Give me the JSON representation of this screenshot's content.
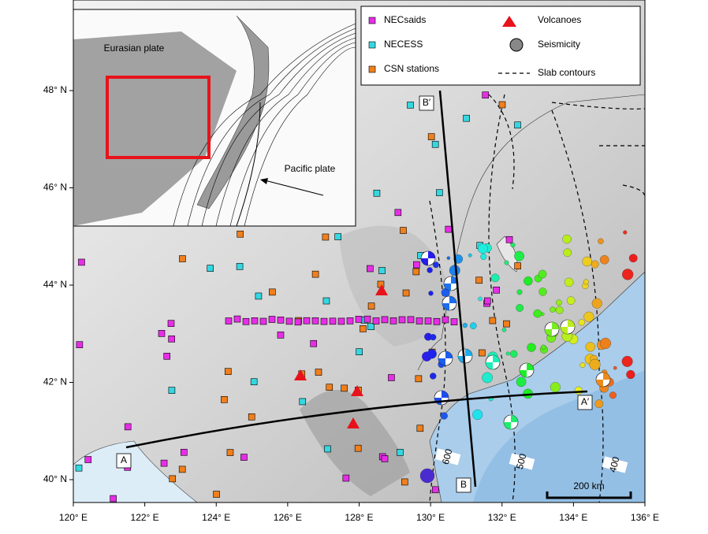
{
  "map": {
    "x_ticks": [
      "120° E",
      "122° E",
      "124° E",
      "126° E",
      "128° E",
      "130° E",
      "132° E",
      "134° E",
      "136° E"
    ],
    "y_ticks": [
      "40° N",
      "42° N",
      "44° N",
      "46° N",
      "48° N"
    ],
    "legend": [
      "NECsaids",
      "NECESS",
      "CSN stations",
      "Volcanoes",
      "Seismicity",
      "Slab contours"
    ],
    "inset_labels": [
      "Eurasian plate",
      "Pacific plate"
    ],
    "profile_labels": [
      "A",
      "A′",
      "B",
      "B′"
    ],
    "contour_labels": [
      "600",
      "500",
      "400"
    ],
    "scale_bar": "200 km"
  }
}
